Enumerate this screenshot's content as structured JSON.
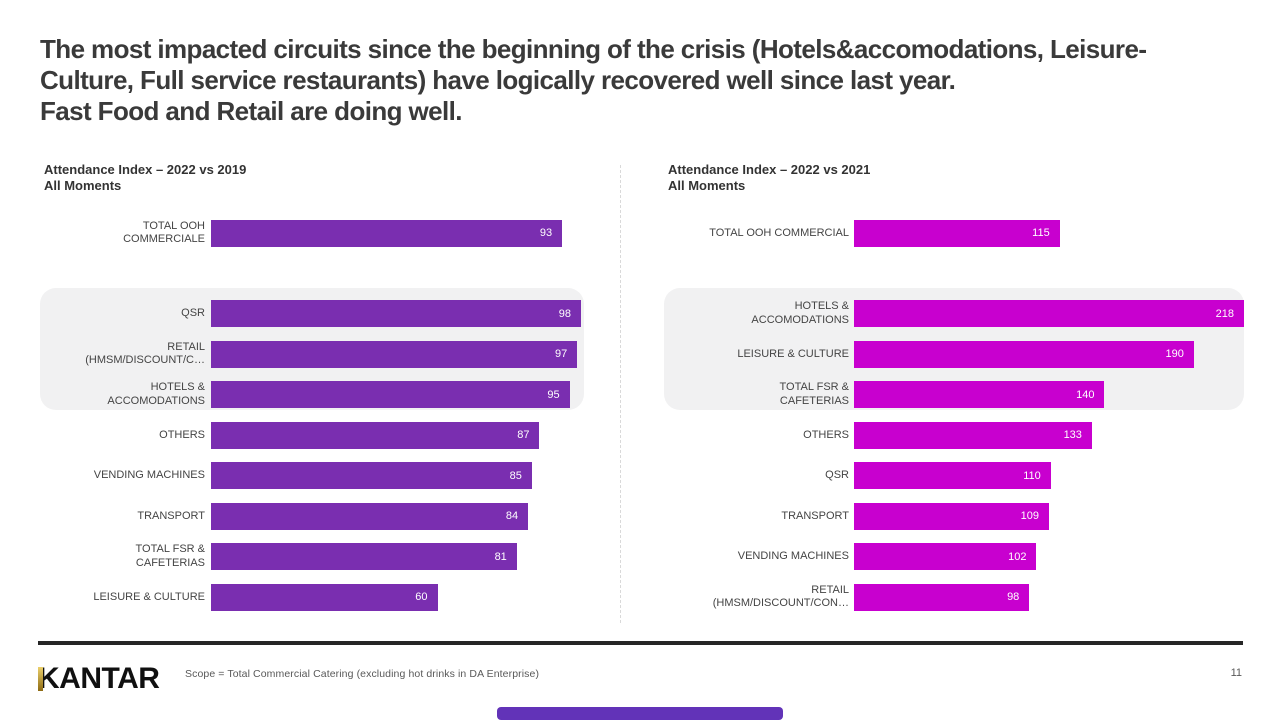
{
  "slide": {
    "title_lines": [
      "The most impacted circuits since the beginning of the crisis (Hotels&accomodations, Leisure-",
      "Culture, Full service restaurants) have logically recovered well since last year.",
      "Fast Food and Retail are doing well."
    ],
    "footer": {
      "logo_text": "KANTAR",
      "scope_note": "Scope = Total Commercial Catering (excluding hot drinks in DA Enterprise)",
      "page_number": "11"
    },
    "colors": {
      "purple": "#7a2eb0",
      "magenta": "#c800cf",
      "highlight_band": "#f1f1f2",
      "title_text": "#3a3a3a",
      "label_text": "#444444",
      "footnote_gray": "#595959",
      "footer_rule": "#262626",
      "logo_gold": "#c9a227",
      "accent_bar": "#6233b8"
    }
  },
  "chart_data": [
    {
      "type": "bar",
      "orientation": "horizontal",
      "title": "Attendance Index – 2022 vs 2019",
      "subtitle": "All Moments",
      "bar_color": "#7a2eb0",
      "value_label_color": "#ffffff",
      "axis_max": 98,
      "xlim": [
        0,
        98
      ],
      "grid": false,
      "legend": false,
      "highlighted_categories": [
        "QSR",
        "RETAIL (HMSM/DISCOUNT/C…",
        "HOTELS & ACCOMODATIONS"
      ],
      "categories": [
        "TOTAL OOH COMMERCIALE",
        "QSR",
        "RETAIL (HMSM/DISCOUNT/C…",
        "HOTELS & ACCOMODATIONS",
        "OTHERS",
        "VENDING MACHINES",
        "TRANSPORT",
        "TOTAL FSR & CAFETERIAS",
        "LEISURE & CULTURE"
      ],
      "values": [
        93,
        98,
        97,
        95,
        87,
        85,
        84,
        81,
        60
      ],
      "rows": [
        {
          "label": "TOTAL OOH\nCOMMERCIALE",
          "value": 93,
          "highlight": false,
          "gap_after": true
        },
        {
          "label": "QSR",
          "value": 98,
          "highlight": true
        },
        {
          "label": "RETAIL\n(HMSM/DISCOUNT/C…",
          "value": 97,
          "highlight": true
        },
        {
          "label": "HOTELS &\nACCOMODATIONS",
          "value": 95,
          "highlight": true
        },
        {
          "label": "OTHERS",
          "value": 87,
          "highlight": false
        },
        {
          "label": "VENDING MACHINES",
          "value": 85,
          "highlight": false
        },
        {
          "label": "TRANSPORT",
          "value": 84,
          "highlight": false
        },
        {
          "label": "TOTAL FSR &\nCAFETERIAS",
          "value": 81,
          "highlight": false
        },
        {
          "label": "LEISURE & CULTURE",
          "value": 60,
          "highlight": false
        }
      ]
    },
    {
      "type": "bar",
      "orientation": "horizontal",
      "title": "Attendance Index – 2022 vs 2021",
      "subtitle": "All Moments",
      "bar_color": "#c800cf",
      "value_label_color": "#ffffff",
      "axis_max": 218,
      "xlim": [
        0,
        218
      ],
      "grid": false,
      "legend": false,
      "highlighted_categories": [
        "HOTELS & ACCOMODATIONS",
        "LEISURE & CULTURE",
        "TOTAL FSR & CAFETERIAS"
      ],
      "categories": [
        "TOTAL OOH COMMERCIAL",
        "HOTELS & ACCOMODATIONS",
        "LEISURE & CULTURE",
        "TOTAL FSR & CAFETERIAS",
        "OTHERS",
        "QSR",
        "TRANSPORT",
        "VENDING MACHINES",
        "RETAIL (HMSM/DISCOUNT/CON…"
      ],
      "values": [
        115,
        218,
        190,
        140,
        133,
        110,
        109,
        102,
        98
      ],
      "rows": [
        {
          "label": "TOTAL OOH COMMERCIAL",
          "value": 115,
          "highlight": false,
          "gap_after": true
        },
        {
          "label": "HOTELS &\nACCOMODATIONS",
          "value": 218,
          "highlight": true
        },
        {
          "label": "LEISURE & CULTURE",
          "value": 190,
          "highlight": true
        },
        {
          "label": "TOTAL FSR &\nCAFETERIAS",
          "value": 140,
          "highlight": true
        },
        {
          "label": "OTHERS",
          "value": 133,
          "highlight": false
        },
        {
          "label": "QSR",
          "value": 110,
          "highlight": false
        },
        {
          "label": "TRANSPORT",
          "value": 109,
          "highlight": false
        },
        {
          "label": "VENDING MACHINES",
          "value": 102,
          "highlight": false
        },
        {
          "label": "RETAIL\n(HMSM/DISCOUNT/CON…",
          "value": 98,
          "highlight": false
        }
      ]
    }
  ]
}
